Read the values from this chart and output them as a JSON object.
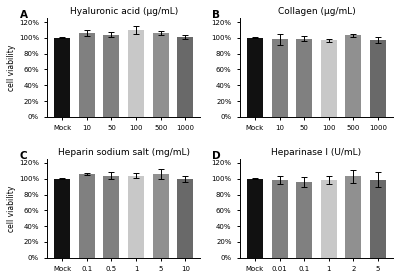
{
  "panels": [
    {
      "label": "A",
      "title": "Hyaluronic acid (μg/mL)",
      "x_labels": [
        "Mock",
        "10",
        "50",
        "100",
        "500",
        "1000"
      ],
      "values": [
        100,
        106,
        104,
        110,
        106,
        101
      ],
      "errors": [
        0.8,
        3.5,
        3.0,
        4.5,
        2.5,
        3.0
      ]
    },
    {
      "label": "B",
      "title": "Collagen (μg/mL)",
      "x_labels": [
        "Mock",
        "10",
        "50",
        "100",
        "500",
        "1000"
      ],
      "values": [
        100,
        98,
        99,
        97,
        103,
        97
      ],
      "errors": [
        0.8,
        6.5,
        3.0,
        2.0,
        2.5,
        3.5
      ]
    },
    {
      "label": "C",
      "title": "Heparin sodium salt (mg/mL)",
      "x_labels": [
        "Mock",
        "0.1",
        "0.5",
        "1",
        "5",
        "10"
      ],
      "values": [
        100,
        106,
        104,
        104,
        106,
        100
      ],
      "errors": [
        0.8,
        1.5,
        4.5,
        3.0,
        6.5,
        4.0
      ]
    },
    {
      "label": "D",
      "title": "Heparinase I (U/mL)",
      "x_labels": [
        "Mock",
        "0.01",
        "0.1",
        "1",
        "2",
        "5"
      ],
      "values": [
        100,
        98,
        96,
        98,
        103,
        99
      ],
      "errors": [
        0.8,
        5.0,
        6.5,
        5.0,
        8.0,
        10.0
      ]
    }
  ],
  "bar_colors": [
    "#111111",
    "#808080",
    "#808080",
    "#c8c8c8",
    "#909090",
    "#696969"
  ],
  "ylabel": "cell viability",
  "ylim": [
    0,
    125
  ],
  "yticks": [
    0,
    20,
    40,
    60,
    80,
    100,
    120
  ],
  "yticklabels": [
    "0%",
    "20%",
    "40%",
    "60%",
    "80%",
    "100%",
    "120%"
  ],
  "bg_color": "#ffffff",
  "title_fontsize": 6.5,
  "tick_fontsize": 5.0,
  "ylabel_fontsize": 5.5,
  "label_fontsize": 7.5
}
